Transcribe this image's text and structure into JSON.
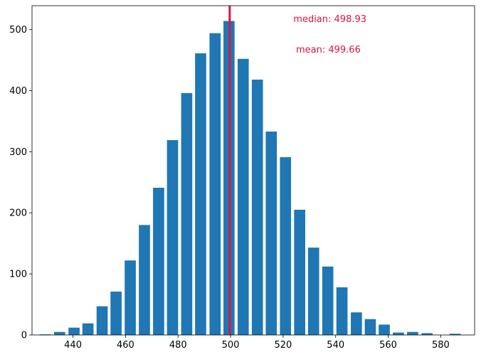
{
  "chart_data": {
    "type": "bar",
    "title": "",
    "xlabel": "",
    "ylabel": "",
    "xlim": [
      424.4,
      592.9
    ],
    "ylim": [
      0,
      539
    ],
    "grid": false,
    "bar_color": "#1f77b4",
    "x_ticks": [
      440,
      460,
      480,
      500,
      520,
      540,
      560,
      580
    ],
    "y_ticks": [
      0,
      100,
      200,
      300,
      400,
      500
    ],
    "bin_width": 5.3,
    "bars": [
      {
        "x": 429.4,
        "value": 1
      },
      {
        "x": 434.9,
        "value": 5
      },
      {
        "x": 440.4,
        "value": 12
      },
      {
        "x": 445.7,
        "value": 19
      },
      {
        "x": 451.1,
        "value": 47
      },
      {
        "x": 456.4,
        "value": 71
      },
      {
        "x": 461.8,
        "value": 122
      },
      {
        "x": 467.2,
        "value": 180
      },
      {
        "x": 472.6,
        "value": 241
      },
      {
        "x": 477.9,
        "value": 319
      },
      {
        "x": 483.3,
        "value": 396
      },
      {
        "x": 488.6,
        "value": 461
      },
      {
        "x": 494.1,
        "value": 494
      },
      {
        "x": 499.4,
        "value": 514
      },
      {
        "x": 504.8,
        "value": 452
      },
      {
        "x": 510.2,
        "value": 418
      },
      {
        "x": 515.5,
        "value": 333
      },
      {
        "x": 520.9,
        "value": 291
      },
      {
        "x": 526.3,
        "value": 205
      },
      {
        "x": 531.6,
        "value": 143
      },
      {
        "x": 537.0,
        "value": 112
      },
      {
        "x": 542.4,
        "value": 78
      },
      {
        "x": 547.9,
        "value": 37
      },
      {
        "x": 553.2,
        "value": 26
      },
      {
        "x": 558.5,
        "value": 17
      },
      {
        "x": 563.9,
        "value": 4
      },
      {
        "x": 569.3,
        "value": 5
      },
      {
        "x": 574.8,
        "value": 3
      },
      {
        "x": 580.1,
        "value": 0
      },
      {
        "x": 585.5,
        "value": 2
      }
    ],
    "vline": {
      "x": 499.66,
      "color": "#dc143c"
    },
    "annotations": {
      "median": {
        "text": "median: 498.93",
        "x": 523.9,
        "y": 512,
        "color": "#dc143c"
      },
      "mean": {
        "text": "mean: 499.66",
        "x": 524.9,
        "y": 462,
        "color": "#dc143c"
      }
    }
  }
}
